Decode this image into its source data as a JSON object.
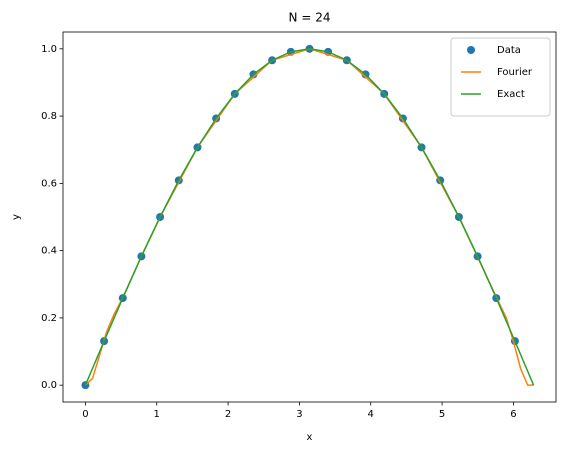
{
  "chart_data": {
    "type": "line",
    "title": "N = 24",
    "x_label": "x",
    "y_label": "y",
    "xlim": [
      -0.314,
      6.597
    ],
    "ylim": [
      -0.05,
      1.05
    ],
    "xticks": [
      0,
      1,
      2,
      3,
      4,
      5,
      6
    ],
    "yticks": [
      {
        "value": 0,
        "label": "0.0"
      },
      0.2,
      0.4,
      0.6,
      0.8,
      {
        "value": 1,
        "label": "1.0"
      }
    ],
    "legend": "upper right",
    "series": [
      {
        "name": "Data",
        "type": "scatter",
        "color": "#1f77b4",
        "x": [
          0,
          0.262,
          0.524,
          0.785,
          1.047,
          1.309,
          1.571,
          1.833,
          2.094,
          2.356,
          2.618,
          2.88,
          3.142,
          3.403,
          3.665,
          3.927,
          4.189,
          4.451,
          4.712,
          4.974,
          5.236,
          5.498,
          5.76,
          6.021
        ],
        "values": [
          0,
          0.131,
          0.259,
          0.383,
          0.5,
          0.609,
          0.707,
          0.793,
          0.866,
          0.924,
          0.966,
          0.991,
          1.0,
          0.991,
          0.966,
          0.924,
          0.866,
          0.793,
          0.707,
          0.609,
          0.5,
          0.383,
          0.259,
          0.131
        ]
      },
      {
        "name": "Fourier",
        "type": "line",
        "color": "#ff7f0e",
        "x": [
          0,
          0.1,
          0.2,
          0.3,
          0.4,
          0.524,
          0.785,
          1.047,
          1.571,
          2.094,
          2.618,
          3.142,
          3.665,
          4.189,
          4.712,
          5.236,
          5.76,
          5.9,
          6.0,
          6.1,
          6.2,
          6.283
        ],
        "values": [
          0,
          0.02,
          0.09,
          0.16,
          0.21,
          0.26,
          0.383,
          0.5,
          0.707,
          0.866,
          0.966,
          1.0,
          0.966,
          0.866,
          0.707,
          0.5,
          0.262,
          0.2,
          0.13,
          0.05,
          0.0,
          0.0
        ]
      },
      {
        "name": "Exact",
        "type": "line",
        "color": "#2ca02c",
        "x": [
          0,
          0.262,
          0.524,
          0.785,
          1.047,
          1.309,
          1.571,
          1.833,
          2.094,
          2.356,
          2.618,
          2.88,
          3.142,
          3.403,
          3.665,
          3.927,
          4.189,
          4.451,
          4.712,
          4.974,
          5.236,
          5.498,
          5.76,
          6.021,
          6.283
        ],
        "values": [
          0,
          0.131,
          0.259,
          0.383,
          0.5,
          0.609,
          0.707,
          0.793,
          0.866,
          0.924,
          0.966,
          0.991,
          1.0,
          0.991,
          0.966,
          0.924,
          0.866,
          0.793,
          0.707,
          0.609,
          0.5,
          0.383,
          0.259,
          0.131,
          0
        ]
      }
    ]
  }
}
